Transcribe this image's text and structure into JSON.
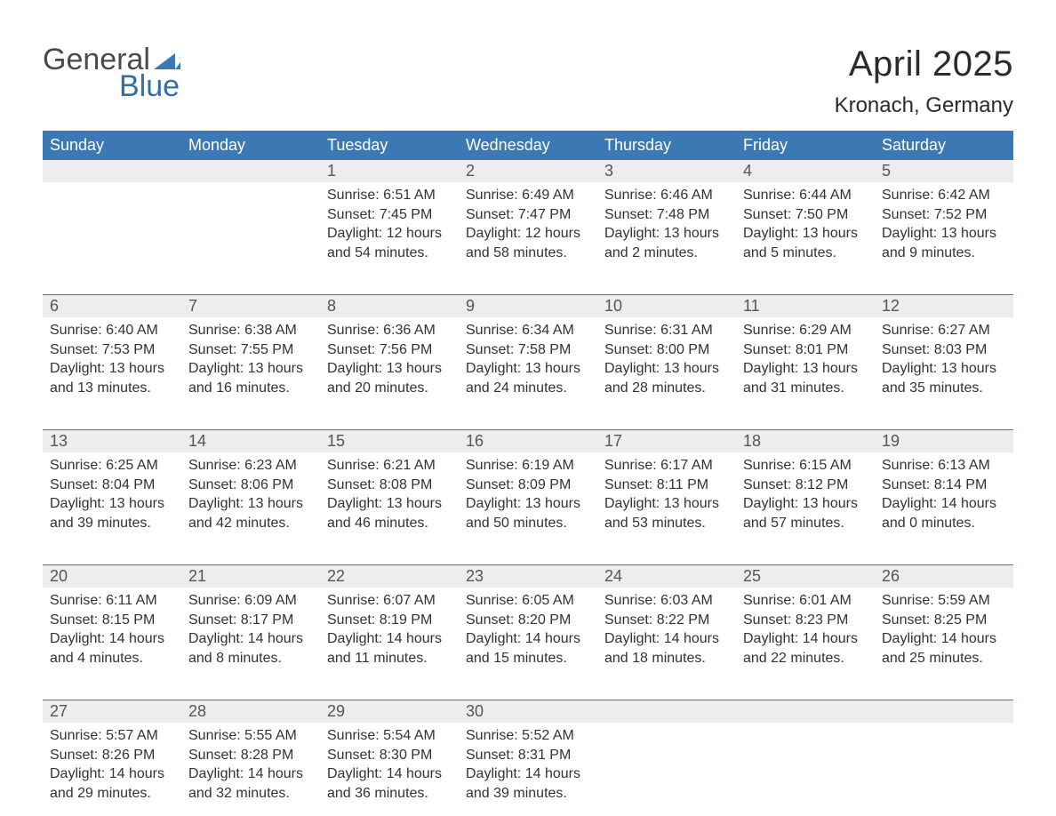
{
  "logo": {
    "word1": "General",
    "word2": "Blue",
    "tri_color": "#3c78b4"
  },
  "title": "April 2025",
  "location": "Kronach, Germany",
  "colors": {
    "header_bg": "#3c78b4",
    "header_text": "#ffffff",
    "date_row_bg": "#ededed",
    "body_text": "#333333",
    "week_border": "#3c78b4",
    "page_bg": "#ffffff"
  },
  "typography": {
    "title_fontsize": 40,
    "location_fontsize": 24,
    "header_fontsize": 18,
    "date_fontsize": 18,
    "body_fontsize": 16
  },
  "day_headers": [
    "Sunday",
    "Monday",
    "Tuesday",
    "Wednesday",
    "Thursday",
    "Friday",
    "Saturday"
  ],
  "weeks": [
    [
      {
        "date": "",
        "sunrise": "",
        "sunset": "",
        "daylight": ""
      },
      {
        "date": "",
        "sunrise": "",
        "sunset": "",
        "daylight": ""
      },
      {
        "date": "1",
        "sunrise": "Sunrise: 6:51 AM",
        "sunset": "Sunset: 7:45 PM",
        "daylight": "Daylight: 12 hours and 54 minutes."
      },
      {
        "date": "2",
        "sunrise": "Sunrise: 6:49 AM",
        "sunset": "Sunset: 7:47 PM",
        "daylight": "Daylight: 12 hours and 58 minutes."
      },
      {
        "date": "3",
        "sunrise": "Sunrise: 6:46 AM",
        "sunset": "Sunset: 7:48 PM",
        "daylight": "Daylight: 13 hours and 2 minutes."
      },
      {
        "date": "4",
        "sunrise": "Sunrise: 6:44 AM",
        "sunset": "Sunset: 7:50 PM",
        "daylight": "Daylight: 13 hours and 5 minutes."
      },
      {
        "date": "5",
        "sunrise": "Sunrise: 6:42 AM",
        "sunset": "Sunset: 7:52 PM",
        "daylight": "Daylight: 13 hours and 9 minutes."
      }
    ],
    [
      {
        "date": "6",
        "sunrise": "Sunrise: 6:40 AM",
        "sunset": "Sunset: 7:53 PM",
        "daylight": "Daylight: 13 hours and 13 minutes."
      },
      {
        "date": "7",
        "sunrise": "Sunrise: 6:38 AM",
        "sunset": "Sunset: 7:55 PM",
        "daylight": "Daylight: 13 hours and 16 minutes."
      },
      {
        "date": "8",
        "sunrise": "Sunrise: 6:36 AM",
        "sunset": "Sunset: 7:56 PM",
        "daylight": "Daylight: 13 hours and 20 minutes."
      },
      {
        "date": "9",
        "sunrise": "Sunrise: 6:34 AM",
        "sunset": "Sunset: 7:58 PM",
        "daylight": "Daylight: 13 hours and 24 minutes."
      },
      {
        "date": "10",
        "sunrise": "Sunrise: 6:31 AM",
        "sunset": "Sunset: 8:00 PM",
        "daylight": "Daylight: 13 hours and 28 minutes."
      },
      {
        "date": "11",
        "sunrise": "Sunrise: 6:29 AM",
        "sunset": "Sunset: 8:01 PM",
        "daylight": "Daylight: 13 hours and 31 minutes."
      },
      {
        "date": "12",
        "sunrise": "Sunrise: 6:27 AM",
        "sunset": "Sunset: 8:03 PM",
        "daylight": "Daylight: 13 hours and 35 minutes."
      }
    ],
    [
      {
        "date": "13",
        "sunrise": "Sunrise: 6:25 AM",
        "sunset": "Sunset: 8:04 PM",
        "daylight": "Daylight: 13 hours and 39 minutes."
      },
      {
        "date": "14",
        "sunrise": "Sunrise: 6:23 AM",
        "sunset": "Sunset: 8:06 PM",
        "daylight": "Daylight: 13 hours and 42 minutes."
      },
      {
        "date": "15",
        "sunrise": "Sunrise: 6:21 AM",
        "sunset": "Sunset: 8:08 PM",
        "daylight": "Daylight: 13 hours and 46 minutes."
      },
      {
        "date": "16",
        "sunrise": "Sunrise: 6:19 AM",
        "sunset": "Sunset: 8:09 PM",
        "daylight": "Daylight: 13 hours and 50 minutes."
      },
      {
        "date": "17",
        "sunrise": "Sunrise: 6:17 AM",
        "sunset": "Sunset: 8:11 PM",
        "daylight": "Daylight: 13 hours and 53 minutes."
      },
      {
        "date": "18",
        "sunrise": "Sunrise: 6:15 AM",
        "sunset": "Sunset: 8:12 PM",
        "daylight": "Daylight: 13 hours and 57 minutes."
      },
      {
        "date": "19",
        "sunrise": "Sunrise: 6:13 AM",
        "sunset": "Sunset: 8:14 PM",
        "daylight": "Daylight: 14 hours and 0 minutes."
      }
    ],
    [
      {
        "date": "20",
        "sunrise": "Sunrise: 6:11 AM",
        "sunset": "Sunset: 8:15 PM",
        "daylight": "Daylight: 14 hours and 4 minutes."
      },
      {
        "date": "21",
        "sunrise": "Sunrise: 6:09 AM",
        "sunset": "Sunset: 8:17 PM",
        "daylight": "Daylight: 14 hours and 8 minutes."
      },
      {
        "date": "22",
        "sunrise": "Sunrise: 6:07 AM",
        "sunset": "Sunset: 8:19 PM",
        "daylight": "Daylight: 14 hours and 11 minutes."
      },
      {
        "date": "23",
        "sunrise": "Sunrise: 6:05 AM",
        "sunset": "Sunset: 8:20 PM",
        "daylight": "Daylight: 14 hours and 15 minutes."
      },
      {
        "date": "24",
        "sunrise": "Sunrise: 6:03 AM",
        "sunset": "Sunset: 8:22 PM",
        "daylight": "Daylight: 14 hours and 18 minutes."
      },
      {
        "date": "25",
        "sunrise": "Sunrise: 6:01 AM",
        "sunset": "Sunset: 8:23 PM",
        "daylight": "Daylight: 14 hours and 22 minutes."
      },
      {
        "date": "26",
        "sunrise": "Sunrise: 5:59 AM",
        "sunset": "Sunset: 8:25 PM",
        "daylight": "Daylight: 14 hours and 25 minutes."
      }
    ],
    [
      {
        "date": "27",
        "sunrise": "Sunrise: 5:57 AM",
        "sunset": "Sunset: 8:26 PM",
        "daylight": "Daylight: 14 hours and 29 minutes."
      },
      {
        "date": "28",
        "sunrise": "Sunrise: 5:55 AM",
        "sunset": "Sunset: 8:28 PM",
        "daylight": "Daylight: 14 hours and 32 minutes."
      },
      {
        "date": "29",
        "sunrise": "Sunrise: 5:54 AM",
        "sunset": "Sunset: 8:30 PM",
        "daylight": "Daylight: 14 hours and 36 minutes."
      },
      {
        "date": "30",
        "sunrise": "Sunrise: 5:52 AM",
        "sunset": "Sunset: 8:31 PM",
        "daylight": "Daylight: 14 hours and 39 minutes."
      },
      {
        "date": "",
        "sunrise": "",
        "sunset": "",
        "daylight": ""
      },
      {
        "date": "",
        "sunrise": "",
        "sunset": "",
        "daylight": ""
      },
      {
        "date": "",
        "sunrise": "",
        "sunset": "",
        "daylight": ""
      }
    ]
  ]
}
